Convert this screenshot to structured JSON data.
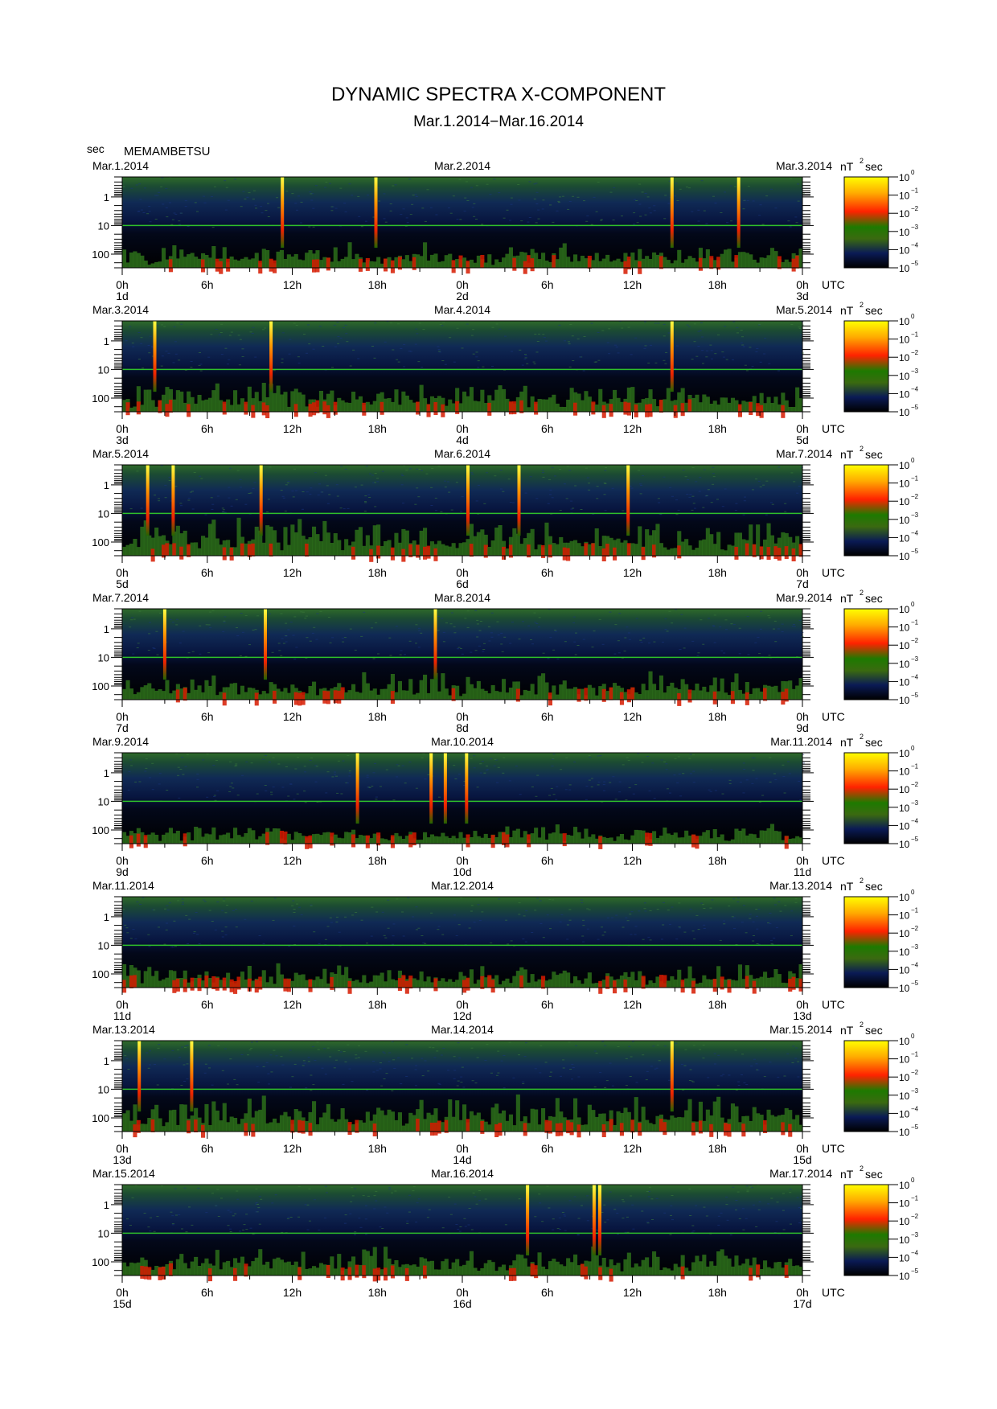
{
  "page": {
    "title": "DYNAMIC SPECTRA X-COMPONENT",
    "subtitle": "Mar.1.2014−Mar.16.2014",
    "y_unit": "sec",
    "station": "MEMAMBETSU",
    "time_unit": "UTC",
    "colorbar_unit": "nT",
    "colorbar_unit_exp": "2",
    "colorbar_unit_suffix": "sec"
  },
  "chart_data": {
    "type": "heatmap",
    "title": "DYNAMIC SPECTRA X-COMPONENT",
    "subtitle": "Mar.1.2014−Mar.16.2014",
    "station": "MEMAMBETSU",
    "ylabel": "sec",
    "y_scale": "log",
    "y_range": [
      0.2,
      300
    ],
    "y_reversed": true,
    "y_tick_values": [
      1,
      10,
      100
    ],
    "y_tick_labels": [
      "1",
      "10",
      "100"
    ],
    "x_unit": "UTC",
    "x_range_hours": [
      0,
      48
    ],
    "x_tick_labels": [
      "0h",
      "6h",
      "12h",
      "18h",
      "0h",
      "6h",
      "12h",
      "18h",
      "0h"
    ],
    "colorbar": {
      "unit": "nT² sec",
      "scale": "log",
      "ticks": [
        {
          "base": "10",
          "exp": "0"
        },
        {
          "base": "10",
          "exp": "−1"
        },
        {
          "base": "10",
          "exp": "−2"
        },
        {
          "base": "10",
          "exp": "−3"
        },
        {
          "base": "10",
          "exp": "−4"
        },
        {
          "base": "10",
          "exp": "−5"
        }
      ],
      "colors": [
        "#ffff00",
        "#ff8800",
        "#ff2200",
        "#228800",
        "#0a1a55",
        "#000000"
      ]
    },
    "panels": [
      {
        "date_left": "Mar.1.2014",
        "date_mid": "Mar.2.2014",
        "date_right": "Mar.3.2014",
        "day_left": "1d",
        "day_mid": "2d",
        "day_right": "3d",
        "spikes_hours": [
          11.3,
          17.9,
          38.8,
          43.5
        ],
        "activity": 0.5,
        "seed": 11
      },
      {
        "date_left": "Mar.3.2014",
        "date_mid": "Mar.4.2014",
        "date_right": "Mar.5.2014",
        "day_left": "3d",
        "day_mid": "4d",
        "day_right": "5d",
        "spikes_hours": [
          2.3,
          10.5,
          38.8
        ],
        "activity": 0.6,
        "seed": 23
      },
      {
        "date_left": "Mar.5.2014",
        "date_mid": "Mar.6.2014",
        "date_right": "Mar.7.2014",
        "day_left": "5d",
        "day_mid": "6d",
        "day_right": "7d",
        "spikes_hours": [
          1.8,
          3.6,
          9.8,
          24.4,
          28.0,
          35.7
        ],
        "activity": 0.8,
        "seed": 37
      },
      {
        "date_left": "Mar.7.2014",
        "date_mid": "Mar.8.2014",
        "date_right": "Mar.9.2014",
        "day_left": "7d",
        "day_mid": "8d",
        "day_right": "9d",
        "spikes_hours": [
          3.0,
          10.1,
          22.1
        ],
        "activity": 0.55,
        "seed": 41
      },
      {
        "date_left": "Mar.9.2014",
        "date_mid": "Mar.10.2014",
        "date_right": "Mar.11.2014",
        "day_left": "9d",
        "day_mid": "10d",
        "day_right": "11d",
        "spikes_hours": [
          16.6,
          21.8,
          22.8,
          24.3
        ],
        "activity": 0.4,
        "seed": 53
      },
      {
        "date_left": "Mar.11.2014",
        "date_mid": "Mar.12.2014",
        "date_right": "Mar.13.2014",
        "day_left": "11d",
        "day_mid": "12d",
        "day_right": "13d",
        "spikes_hours": [],
        "activity": 0.5,
        "seed": 67
      },
      {
        "date_left": "Mar.13.2014",
        "date_mid": "Mar.14.2014",
        "date_right": "Mar.15.2014",
        "day_left": "13d",
        "day_mid": "14d",
        "day_right": "15d",
        "spikes_hours": [
          1.2,
          4.9,
          38.8
        ],
        "activity": 0.7,
        "seed": 79
      },
      {
        "date_left": "Mar.15.2014",
        "date_mid": "Mar.16.2014",
        "date_right": "Mar.17.2014",
        "day_left": "15d",
        "day_mid": "16d",
        "day_right": "17d",
        "spikes_hours": [
          28.6,
          33.3,
          33.7
        ],
        "activity": 0.55,
        "seed": 97
      }
    ]
  }
}
